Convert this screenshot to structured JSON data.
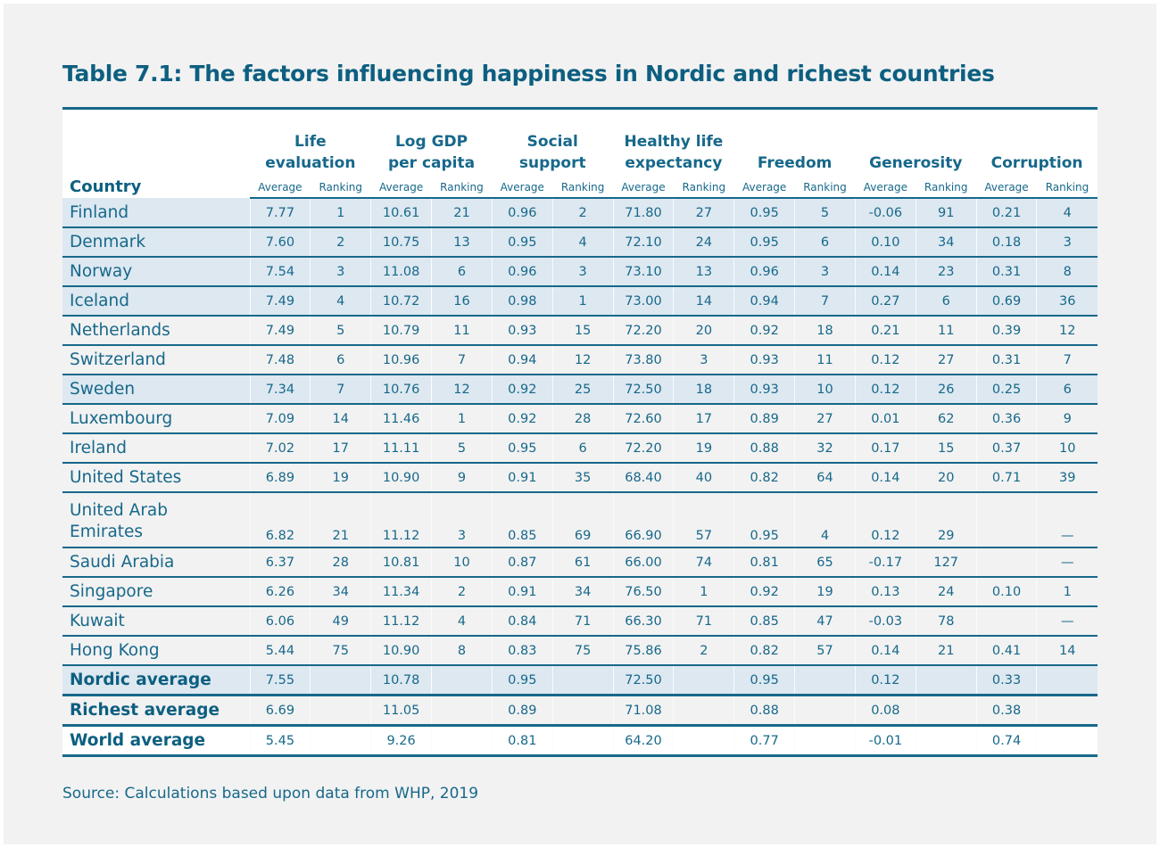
{
  "title": "Table 7.1: The factors influencing happiness in Nordic and richest countries",
  "header": {
    "country": "Country",
    "groups": [
      "Life evaluation",
      "Log GDP per capita",
      "Social support",
      "Healthy life expectancy",
      "Freedom",
      "Generosity",
      "Corruption"
    ],
    "group_lines": [
      [
        "Life",
        "evaluation"
      ],
      [
        "Log GDP",
        "per capita"
      ],
      [
        "Social",
        "support"
      ],
      [
        "Healthy life",
        "expectancy"
      ],
      [
        "",
        "Freedom"
      ],
      [
        "",
        "Generosity"
      ],
      [
        "",
        "Corruption"
      ]
    ],
    "average": "Average",
    "ranking": "Ranking"
  },
  "rows": [
    {
      "country": "Finland",
      "nordic": true,
      "values": [
        "7.77",
        "1",
        "10.61",
        "21",
        "0.96",
        "2",
        "71.80",
        "27",
        "0.95",
        "5",
        "-0.06",
        "91",
        "0.21",
        "4"
      ]
    },
    {
      "country": "Denmark",
      "nordic": true,
      "values": [
        "7.60",
        "2",
        "10.75",
        "13",
        "0.95",
        "4",
        "72.10",
        "24",
        "0.95",
        "6",
        "0.10",
        "34",
        "0.18",
        "3"
      ]
    },
    {
      "country": "Norway",
      "nordic": true,
      "values": [
        "7.54",
        "3",
        "11.08",
        "6",
        "0.96",
        "3",
        "73.10",
        "13",
        "0.96",
        "3",
        "0.14",
        "23",
        "0.31",
        "8"
      ]
    },
    {
      "country": "Iceland",
      "nordic": true,
      "values": [
        "7.49",
        "4",
        "10.72",
        "16",
        "0.98",
        "1",
        "73.00",
        "14",
        "0.94",
        "7",
        "0.27",
        "6",
        "0.69",
        "36"
      ]
    },
    {
      "country": "Netherlands",
      "nordic": false,
      "values": [
        "7.49",
        "5",
        "10.79",
        "11",
        "0.93",
        "15",
        "72.20",
        "20",
        "0.92",
        "18",
        "0.21",
        "11",
        "0.39",
        "12"
      ]
    },
    {
      "country": "Switzerland",
      "nordic": false,
      "values": [
        "7.48",
        "6",
        "10.96",
        "7",
        "0.94",
        "12",
        "73.80",
        "3",
        "0.93",
        "11",
        "0.12",
        "27",
        "0.31",
        "7"
      ]
    },
    {
      "country": "Sweden",
      "nordic": true,
      "values": [
        "7.34",
        "7",
        "10.76",
        "12",
        "0.92",
        "25",
        "72.50",
        "18",
        "0.93",
        "10",
        "0.12",
        "26",
        "0.25",
        "6"
      ]
    },
    {
      "country": "Luxembourg",
      "nordic": false,
      "values": [
        "7.09",
        "14",
        "11.46",
        "1",
        "0.92",
        "28",
        "72.60",
        "17",
        "0.89",
        "27",
        "0.01",
        "62",
        "0.36",
        "9"
      ]
    },
    {
      "country": "Ireland",
      "nordic": false,
      "values": [
        "7.02",
        "17",
        "11.11",
        "5",
        "0.95",
        "6",
        "72.20",
        "19",
        "0.88",
        "32",
        "0.17",
        "15",
        "0.37",
        "10"
      ]
    },
    {
      "country": "United States",
      "nordic": false,
      "values": [
        "6.89",
        "19",
        "10.90",
        "9",
        "0.91",
        "35",
        "68.40",
        "40",
        "0.82",
        "64",
        "0.14",
        "20",
        "0.71",
        "39"
      ]
    },
    {
      "country": "United Arab Emirates",
      "nordic": false,
      "values": [
        "6.82",
        "21",
        "11.12",
        "3",
        "0.85",
        "69",
        "66.90",
        "57",
        "0.95",
        "4",
        "0.12",
        "29",
        "",
        "—"
      ]
    },
    {
      "country": "Saudi Arabia",
      "nordic": false,
      "values": [
        "6.37",
        "28",
        "10.81",
        "10",
        "0.87",
        "61",
        "66.00",
        "74",
        "0.81",
        "65",
        "-0.17",
        "127",
        "",
        "—"
      ]
    },
    {
      "country": "Singapore",
      "nordic": false,
      "values": [
        "6.26",
        "34",
        "11.34",
        "2",
        "0.91",
        "34",
        "76.50",
        "1",
        "0.92",
        "19",
        "0.13",
        "24",
        "0.10",
        "1"
      ]
    },
    {
      "country": "Kuwait",
      "nordic": false,
      "values": [
        "6.06",
        "49",
        "11.12",
        "4",
        "0.84",
        "71",
        "66.30",
        "71",
        "0.85",
        "47",
        "-0.03",
        "78",
        "",
        "—"
      ]
    },
    {
      "country": "Hong Kong",
      "nordic": false,
      "values": [
        "5.44",
        "75",
        "10.90",
        "8",
        "0.83",
        "75",
        "75.86",
        "2",
        "0.82",
        "57",
        "0.14",
        "21",
        "0.41",
        "14"
      ]
    }
  ],
  "averages": [
    {
      "label": "Nordic average",
      "values": [
        "7.55",
        "",
        "10.78",
        "",
        "0.95",
        "",
        "72.50",
        "",
        "0.95",
        "",
        "0.12",
        "",
        "0.33",
        ""
      ]
    },
    {
      "label": "Richest average",
      "values": [
        "6.69",
        "",
        "11.05",
        "",
        "0.89",
        "",
        "71.08",
        "",
        "0.88",
        "",
        "0.08",
        "",
        "0.38",
        ""
      ]
    },
    {
      "label": "World average",
      "values": [
        "5.45",
        "",
        "9.26",
        "",
        "0.81",
        "",
        "64.20",
        "",
        "0.77",
        "",
        "-0.01",
        "",
        "0.74",
        ""
      ]
    }
  ],
  "source": "Source: Calculations based upon data from WHP, 2019",
  "colors": {
    "primary": "#17688a",
    "title": "#0d5f80",
    "nordic_row": "#dde8f1",
    "background": "#f2f2f2"
  }
}
